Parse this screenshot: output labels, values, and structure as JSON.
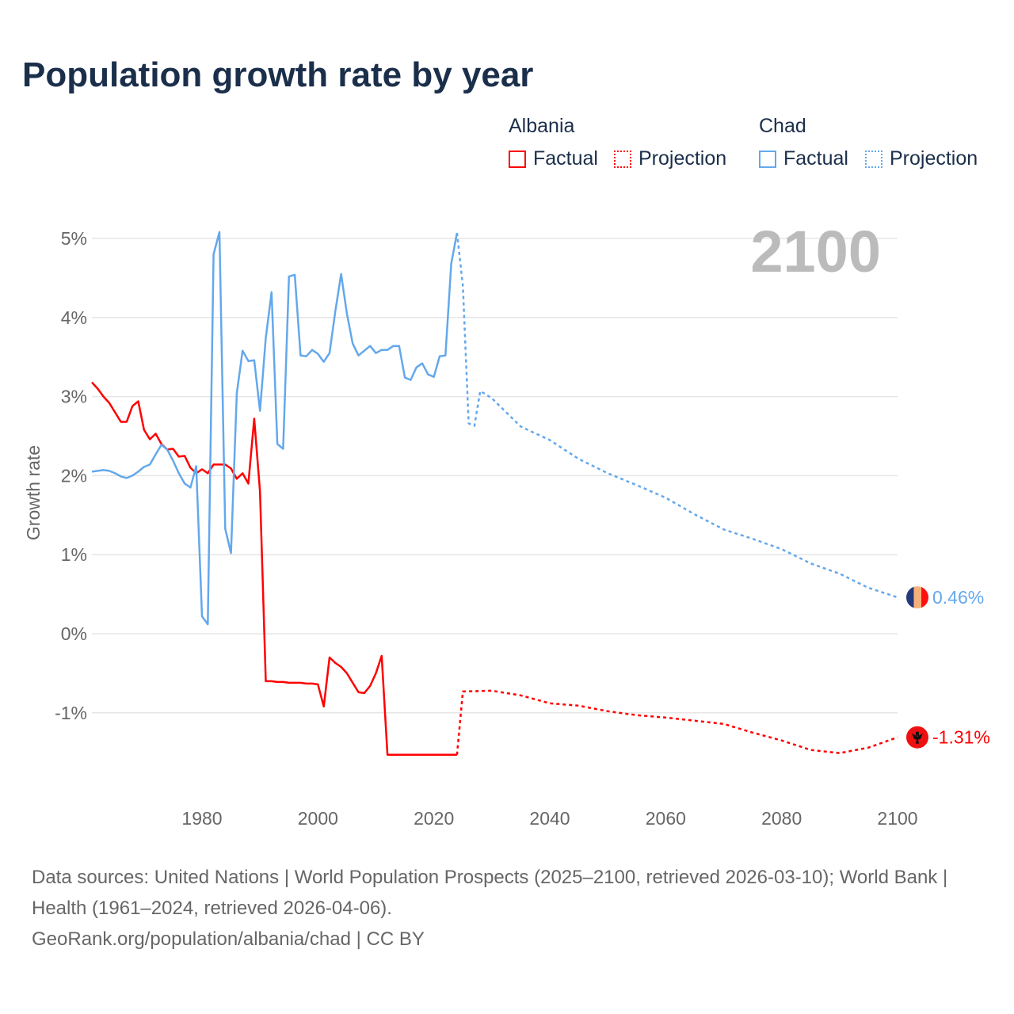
{
  "title": "Population growth rate by year",
  "legend": {
    "groups": [
      {
        "name": "Albania",
        "color": "#ff0000",
        "items": [
          "Factual",
          "Projection"
        ]
      },
      {
        "name": "Chad",
        "color": "#64a8ec",
        "items": [
          "Factual",
          "Projection"
        ]
      }
    ]
  },
  "year_label": "2100",
  "footer": {
    "sources": "Data sources: United Nations | World Population Prospects (2025–2100, retrieved 2026-03-10); World Bank | Health (1961–2024, retrieved 2026-04-06).",
    "credit": "GeoRank.org/population/albania/chad | CC BY"
  },
  "chart_data": {
    "type": "line",
    "title": "Population growth rate by year",
    "xlabel": "",
    "ylabel": "Growth rate",
    "xlim": [
      1961,
      2100
    ],
    "ylim": [
      -2,
      5
    ],
    "x_ticks": [
      1980,
      2000,
      2020,
      2040,
      2060,
      2080,
      2100
    ],
    "x_tick_labels": [
      "1980",
      "2000",
      "2020",
      "2040",
      "2060",
      "2080",
      "2100"
    ],
    "y_ticks": [
      5,
      4,
      3,
      2,
      1,
      0,
      -1
    ],
    "y_tick_labels": [
      "5%",
      "4%",
      "3%",
      "2%",
      "1%",
      "0%",
      "-1%"
    ],
    "grid": true,
    "series": [
      {
        "name": "Albania Factual",
        "color": "#ff0000",
        "style": "solid",
        "start_year": 1961,
        "values": [
          3.18,
          3.1,
          3.0,
          2.92,
          2.8,
          2.68,
          2.68,
          2.88,
          2.94,
          2.58,
          2.46,
          2.53,
          2.4,
          2.33,
          2.34,
          2.24,
          2.25,
          2.1,
          2.03,
          2.08,
          2.03,
          2.14,
          2.14,
          2.14,
          2.09,
          1.96,
          2.03,
          1.9,
          2.72,
          1.8,
          -0.6,
          -0.6,
          -0.61,
          -0.61,
          -0.62,
          -0.62,
          -0.62,
          -0.63,
          -0.63,
          -0.64,
          -0.92,
          -0.3,
          -0.37,
          -0.42,
          -0.5,
          -0.62,
          -0.74,
          -0.75,
          -0.66,
          -0.5,
          -0.28,
          -1.53,
          -1.53,
          -1.53,
          -1.53,
          -1.53,
          -1.53,
          -1.53,
          -1.53,
          -1.53,
          -1.53,
          -1.53,
          -1.53,
          -1.53
        ]
      },
      {
        "name": "Albania Projection",
        "color": "#ff0000",
        "style": "dotted",
        "points": [
          [
            2024,
            -1.53
          ],
          [
            2025,
            -0.73
          ],
          [
            2030,
            -0.72
          ],
          [
            2035,
            -0.78
          ],
          [
            2040,
            -0.88
          ],
          [
            2045,
            -0.91
          ],
          [
            2050,
            -0.98
          ],
          [
            2055,
            -1.03
          ],
          [
            2060,
            -1.06
          ],
          [
            2065,
            -1.1
          ],
          [
            2070,
            -1.14
          ],
          [
            2075,
            -1.25
          ],
          [
            2080,
            -1.35
          ],
          [
            2085,
            -1.47
          ],
          [
            2090,
            -1.51
          ],
          [
            2095,
            -1.44
          ],
          [
            2100,
            -1.31
          ]
        ]
      },
      {
        "name": "Chad Factual",
        "color": "#64a8ec",
        "style": "solid",
        "start_year": 1961,
        "values": [
          2.05,
          2.06,
          2.07,
          2.06,
          2.03,
          1.99,
          1.97,
          2.0,
          2.05,
          2.11,
          2.14,
          2.27,
          2.39,
          2.33,
          2.19,
          2.03,
          1.9,
          1.85,
          2.12,
          0.22,
          0.12,
          4.8,
          5.08,
          1.33,
          1.02,
          3.04,
          3.58,
          3.45,
          3.46,
          2.82,
          3.74,
          4.32,
          2.4,
          2.34,
          4.52,
          4.54,
          3.52,
          3.51,
          3.59,
          3.54,
          3.44,
          3.55,
          4.08,
          4.55,
          4.05,
          3.67,
          3.52,
          3.58,
          3.64,
          3.55,
          3.59,
          3.59,
          3.64,
          3.64,
          3.24,
          3.21,
          3.37,
          3.42,
          3.28,
          3.25,
          3.51,
          3.52,
          4.68,
          5.07
        ]
      },
      {
        "name": "Chad Projection",
        "color": "#64a8ec",
        "style": "dotted",
        "points": [
          [
            2024,
            5.07
          ],
          [
            2025,
            4.4
          ],
          [
            2026,
            2.66
          ],
          [
            2027,
            2.63
          ],
          [
            2028,
            3.07
          ],
          [
            2030,
            2.98
          ],
          [
            2035,
            2.62
          ],
          [
            2040,
            2.45
          ],
          [
            2045,
            2.21
          ],
          [
            2050,
            2.03
          ],
          [
            2055,
            1.88
          ],
          [
            2060,
            1.72
          ],
          [
            2065,
            1.51
          ],
          [
            2070,
            1.32
          ],
          [
            2075,
            1.2
          ],
          [
            2080,
            1.07
          ],
          [
            2085,
            0.89
          ],
          [
            2090,
            0.76
          ],
          [
            2095,
            0.58
          ],
          [
            2100,
            0.46
          ]
        ]
      }
    ],
    "end_labels": [
      {
        "country": "Chad",
        "text": "0.46%",
        "value": 0.46,
        "color": "#64a8ec",
        "flag": "chad-flag"
      },
      {
        "country": "Albania",
        "text": "-1.31%",
        "value": -1.31,
        "color": "#ff0000",
        "flag": "albania-flag"
      }
    ]
  }
}
